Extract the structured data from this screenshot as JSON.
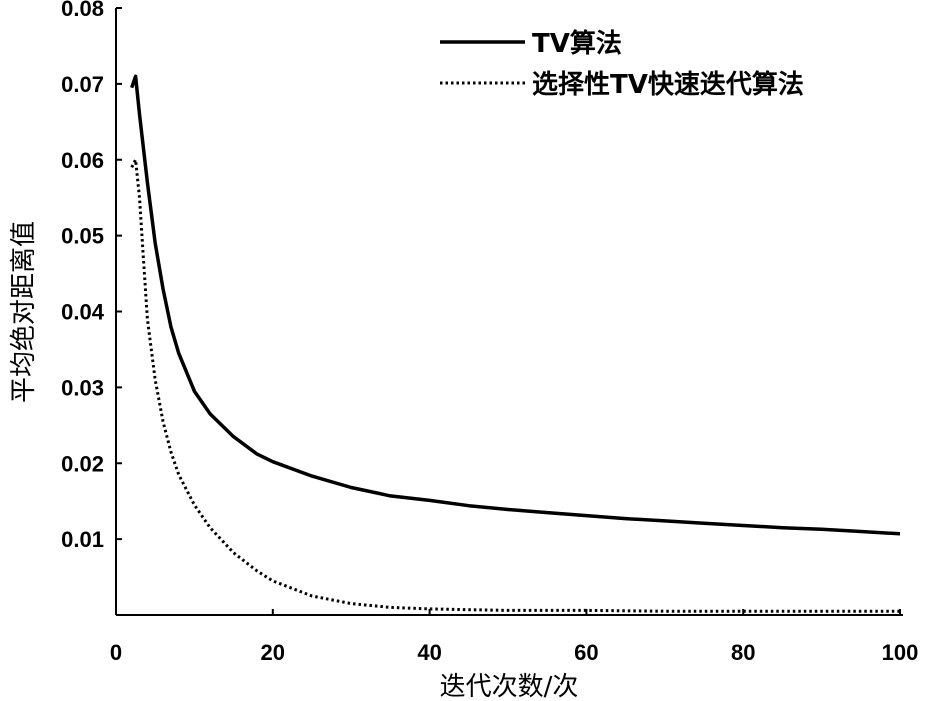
{
  "chart_data": {
    "type": "line",
    "title": "",
    "xlabel": "迭代次数/次",
    "ylabel": "平均绝对距离值",
    "xlim": [
      0,
      100
    ],
    "ylim": [
      0,
      0.08
    ],
    "x_ticks": [
      "0",
      "20",
      "40",
      "60",
      "80",
      "100"
    ],
    "y_ticks": [
      "0.01",
      "0.02",
      "0.03",
      "0.04",
      "0.05",
      "0.06",
      "0.07",
      "0.08"
    ],
    "grid": false,
    "legend_position": "top-right",
    "series": [
      {
        "name": "TV算法",
        "style": "solid",
        "color": "#000000",
        "x": [
          2,
          2.5,
          3,
          4,
          5,
          6,
          7,
          8,
          10,
          12,
          15,
          18,
          20,
          25,
          30,
          35,
          40,
          45,
          50,
          55,
          60,
          65,
          70,
          75,
          80,
          85,
          90,
          95,
          100
        ],
        "y": [
          0.0695,
          0.071,
          0.066,
          0.057,
          0.049,
          0.043,
          0.038,
          0.0345,
          0.0295,
          0.0265,
          0.0235,
          0.0212,
          0.0202,
          0.0183,
          0.0168,
          0.0157,
          0.0151,
          0.0144,
          0.0139,
          0.0135,
          0.0131,
          0.0127,
          0.0124,
          0.0121,
          0.0118,
          0.0115,
          0.0113,
          0.011,
          0.0107
        ]
      },
      {
        "name": "选择性TV快速迭代算法",
        "style": "dotted",
        "color": "#000000",
        "x": [
          2,
          2.5,
          3,
          3.5,
          4,
          5,
          6,
          7,
          8,
          10,
          12,
          15,
          18,
          20,
          25,
          30,
          35,
          40,
          45,
          50,
          60,
          70,
          80,
          90,
          100
        ],
        "y": [
          0.059,
          0.06,
          0.055,
          0.047,
          0.039,
          0.031,
          0.0255,
          0.0215,
          0.0185,
          0.0145,
          0.0115,
          0.0082,
          0.0058,
          0.0045,
          0.0025,
          0.0015,
          0.001,
          0.0008,
          0.0007,
          0.0006,
          0.0006,
          0.0005,
          0.0005,
          0.0005,
          0.0005
        ]
      }
    ]
  }
}
